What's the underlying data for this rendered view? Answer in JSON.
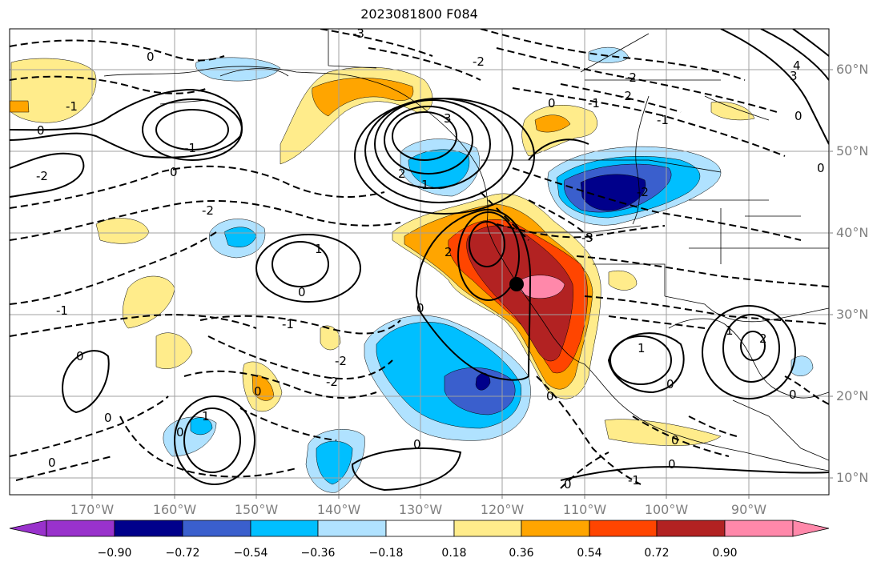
{
  "title": "2023081800 F084",
  "lat_labels": [
    "60°N",
    "50°N",
    "40°N",
    "30°N",
    "20°N",
    "10°N"
  ],
  "lon_labels": [
    "170°W",
    "160°W",
    "150°W",
    "140°W",
    "130°W",
    "120°W",
    "110°W",
    "100°W",
    "90°W"
  ],
  "colorbar": {
    "colors": [
      "#9932CC",
      "#00008B",
      "#3A5FCD",
      "#00BFFF",
      "#B0E2FF",
      "#FFFFFF",
      "#FFEC8B",
      "#FFA500",
      "#FF4500",
      "#B22222",
      "#FF88AA"
    ],
    "ticks": [
      "−0.90",
      "−0.72",
      "−0.54",
      "−0.36",
      "−0.18",
      "0.18",
      "0.36",
      "0.54",
      "0.72",
      "0.90"
    ]
  },
  "marker": {
    "label": "point"
  },
  "contour_labels": [
    "0",
    "1",
    "-1",
    "2",
    "-2",
    "3",
    "-3",
    "4",
    "0",
    "-1",
    "-2",
    "1",
    "0",
    "-2",
    "-3",
    "2"
  ]
}
